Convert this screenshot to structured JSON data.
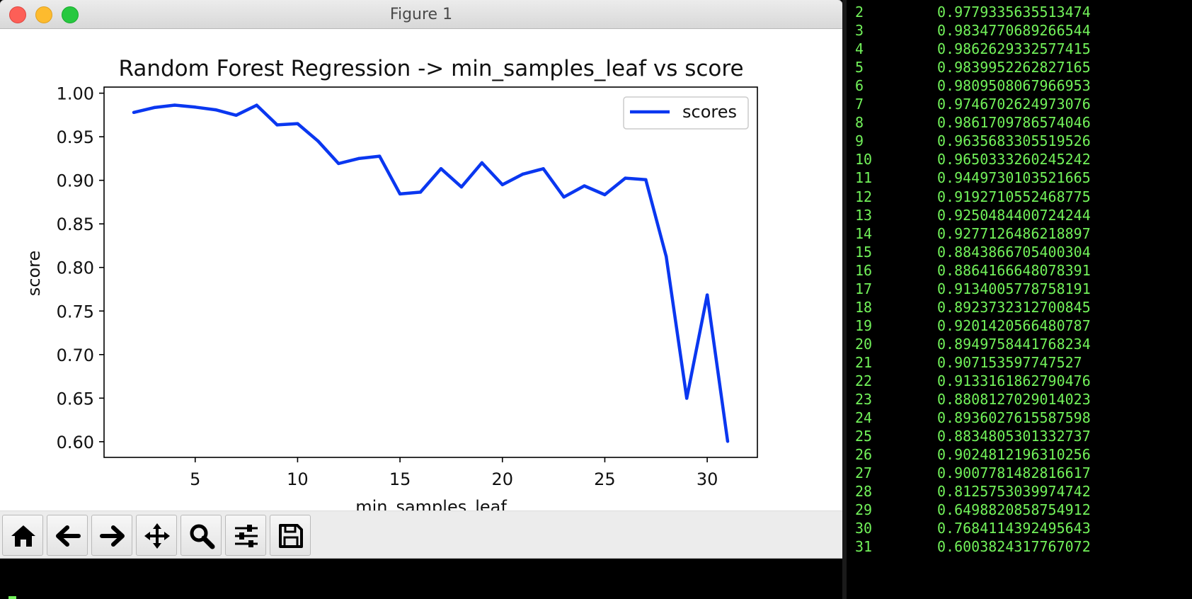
{
  "window": {
    "title": "Figure 1"
  },
  "chart_data": {
    "type": "line",
    "title": "Random Forest Regression -> min_samples_leaf vs score",
    "xlabel": "min_samples_leaf",
    "ylabel": "score",
    "xlim": [
      0.55,
      32.45
    ],
    "ylim": [
      0.582,
      1.007
    ],
    "xticks": [
      5,
      10,
      15,
      20,
      25,
      30
    ],
    "yticks": [
      0.6,
      0.65,
      0.7,
      0.75,
      0.8,
      0.85,
      0.9,
      0.95,
      1.0
    ],
    "ytick_labels": [
      "0.60",
      "0.65",
      "0.70",
      "0.75",
      "0.80",
      "0.85",
      "0.90",
      "0.95",
      "1.00"
    ],
    "grid": false,
    "legend": "top-right",
    "series": [
      {
        "name": "scores",
        "color": "#0a37f0",
        "x": [
          2,
          3,
          4,
          5,
          6,
          7,
          8,
          9,
          10,
          11,
          12,
          13,
          14,
          15,
          16,
          17,
          18,
          19,
          20,
          21,
          22,
          23,
          24,
          25,
          26,
          27,
          28,
          29,
          30,
          31
        ],
        "values": [
          0.9779335635513474,
          0.983477068926654,
          0.986262933257741,
          0.983995226282716,
          0.980950806796695,
          0.974670262497307,
          0.986170978657404,
          0.963568330551952,
          0.965033326024524,
          0.944973010352166,
          0.919271055246877,
          0.925048440072424,
          0.927712648621889,
          0.88438667054003,
          0.886416664807839,
          0.913400577875819,
          0.892373231270084,
          0.920142056648078,
          0.894975844176823,
          0.907153597747527,
          0.913316186279047,
          0.880812702901402,
          0.893602761558759,
          0.883480530133273,
          0.902481219631025,
          0.900778148281661,
          0.812575303997474,
          0.649882085875491,
          0.768411439249564,
          0.600382431776707
        ]
      }
    ]
  },
  "toolbar": {
    "buttons": [
      {
        "name": "home-button",
        "icon": "home-icon"
      },
      {
        "name": "back-button",
        "icon": "arrow-left-icon"
      },
      {
        "name": "forward-button",
        "icon": "arrow-right-icon"
      },
      {
        "name": "pan-button",
        "icon": "move-icon"
      },
      {
        "name": "zoom-button",
        "icon": "magnifier-icon"
      },
      {
        "name": "configure-subplots-button",
        "icon": "sliders-icon"
      },
      {
        "name": "save-button",
        "icon": "floppy-disk-icon"
      }
    ]
  },
  "console": {
    "rows": [
      {
        "index": "2",
        "value": "0.9779335635513474"
      },
      {
        "index": "3",
        "value": "0.9834770689266544"
      },
      {
        "index": "4",
        "value": "0.9862629332577415"
      },
      {
        "index": "5",
        "value": "0.9839952262827165"
      },
      {
        "index": "6",
        "value": "0.9809508067966953"
      },
      {
        "index": "7",
        "value": "0.9746702624973076"
      },
      {
        "index": "8",
        "value": "0.9861709786574046"
      },
      {
        "index": "9",
        "value": "0.9635683305519526"
      },
      {
        "index": "10",
        "value": "0.9650333260245242"
      },
      {
        "index": "11",
        "value": "0.9449730103521665"
      },
      {
        "index": "12",
        "value": "0.9192710552468775"
      },
      {
        "index": "13",
        "value": "0.9250484400724244"
      },
      {
        "index": "14",
        "value": "0.9277126486218897"
      },
      {
        "index": "15",
        "value": "0.8843866705400304"
      },
      {
        "index": "16",
        "value": "0.8864166648078391"
      },
      {
        "index": "17",
        "value": "0.9134005778758191"
      },
      {
        "index": "18",
        "value": "0.8923732312700845"
      },
      {
        "index": "19",
        "value": "0.9201420566480787"
      },
      {
        "index": "20",
        "value": "0.8949758441768234"
      },
      {
        "index": "21",
        "value": "0.907153597747527"
      },
      {
        "index": "22",
        "value": "0.9133161862790476"
      },
      {
        "index": "23",
        "value": "0.8808127029014023"
      },
      {
        "index": "24",
        "value": "0.8936027615587598"
      },
      {
        "index": "25",
        "value": "0.8834805301332737"
      },
      {
        "index": "26",
        "value": "0.9024812196310256"
      },
      {
        "index": "27",
        "value": "0.9007781482816617"
      },
      {
        "index": "28",
        "value": "0.8125753039974742"
      },
      {
        "index": "29",
        "value": "0.6498820858754912"
      },
      {
        "index": "30",
        "value": "0.7684114392495643"
      },
      {
        "index": "31",
        "value": "0.6003824317767072"
      }
    ]
  }
}
